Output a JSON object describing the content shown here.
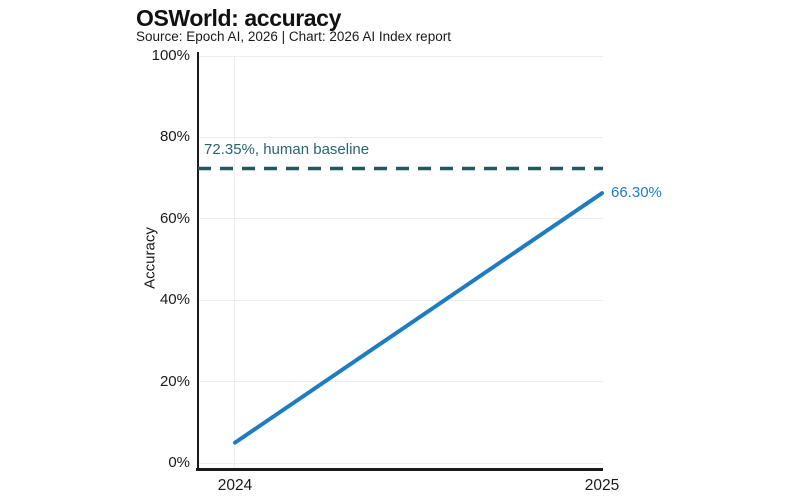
{
  "page": {
    "background": "#FFFFFF"
  },
  "chart_data": {
    "type": "line",
    "title": "OSWorld: accuracy",
    "subtitle": "Source: Epoch AI, 2026 | Chart: 2026 AI Index report",
    "ylabel": "Accuracy",
    "xlabel": "",
    "x": [
      2024,
      2025
    ],
    "xtick_labels": [
      "2024",
      "2025"
    ],
    "series": [
      {
        "name": "OSWorld accuracy",
        "values": [
          5,
          66.3
        ],
        "end_label": "66.30%",
        "color": "#1E7DC2"
      }
    ],
    "baseline": {
      "value": 72.35,
      "label": "72.35%, human baseline",
      "style": "dashed"
    },
    "ylim": [
      0,
      100
    ],
    "yticks": [
      0,
      20,
      40,
      60,
      80,
      100
    ],
    "ytick_labels": [
      "0%",
      "20%",
      "40%",
      "60%",
      "80%",
      "100%"
    ],
    "grid": true,
    "legend": "none",
    "colors": {
      "series": "#1E7DC2",
      "baseline": "#26565E",
      "baseline_text": "#2B636D",
      "axis": "#1A1A1A",
      "text": "#1A1A1A",
      "grid": "#EDEDED",
      "title": "#111111"
    }
  }
}
